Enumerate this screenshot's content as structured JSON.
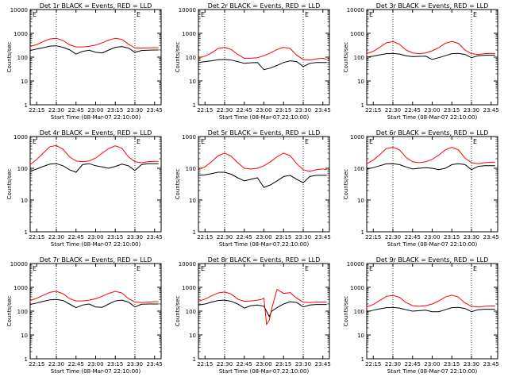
{
  "colors": {
    "events": "#000000",
    "lld": "#ff0000",
    "background": "#ffffff",
    "axes": "#000000"
  },
  "common": {
    "xlabel": "Start Time (08-Mar-07 22:10:00)",
    "ylabel": "Counts/sec",
    "x_tick_labels": [
      "22:15",
      "22:30",
      "22:45",
      "23:00",
      "23:15",
      "23:30",
      "23:45"
    ],
    "x_tick_minutes": [
      5,
      20,
      35,
      50,
      65,
      80,
      95
    ],
    "xlim_minutes": [
      0,
      100
    ],
    "marker_lines_minutes": [
      20,
      80
    ],
    "marker_label": "E",
    "marker_label_minute": 80
  },
  "chart_data": [
    {
      "type": "line",
      "title": "Det 1r BLACK = Events, RED = LLD",
      "ylim": [
        1,
        10000
      ],
      "yscale": "log",
      "y_tick_labels": [
        "1",
        "10",
        "100",
        "1000",
        "10000"
      ],
      "x_minutes": [
        0,
        5,
        10,
        15,
        20,
        25,
        30,
        35,
        40,
        45,
        50,
        55,
        60,
        65,
        70,
        75,
        80,
        85,
        90,
        95,
        98
      ],
      "series": [
        {
          "name": "Events",
          "values": [
            190,
            220,
            250,
            290,
            300,
            260,
            205,
            135,
            175,
            195,
            160,
            150,
            200,
            260,
            280,
            240,
            160,
            190,
            195,
            200,
            200
          ]
        },
        {
          "name": "LLD",
          "values": [
            280,
            340,
            450,
            580,
            620,
            500,
            330,
            270,
            270,
            285,
            320,
            400,
            520,
            620,
            560,
            350,
            245,
            240,
            245,
            250,
            250
          ]
        }
      ]
    },
    {
      "type": "line",
      "title": "Det 2r BLACK = Events, RED = LLD",
      "ylim": [
        1,
        10000
      ],
      "yscale": "log",
      "y_tick_labels": [
        "1",
        "10",
        "100",
        "1000",
        "10000"
      ],
      "x_minutes": [
        0,
        5,
        10,
        15,
        20,
        25,
        30,
        35,
        40,
        45,
        50,
        55,
        60,
        65,
        70,
        75,
        80,
        85,
        90,
        95,
        98
      ],
      "series": [
        {
          "name": "Events",
          "values": [
            60,
            65,
            70,
            78,
            80,
            75,
            65,
            55,
            58,
            60,
            30,
            35,
            45,
            60,
            70,
            65,
            40,
            55,
            60,
            60,
            60
          ]
        },
        {
          "name": "LLD",
          "values": [
            95,
            110,
            150,
            230,
            260,
            210,
            130,
            90,
            90,
            95,
            115,
            150,
            210,
            260,
            230,
            120,
            80,
            75,
            85,
            90,
            80
          ]
        }
      ]
    },
    {
      "type": "line",
      "title": "Det 3r BLACK = Events, RED = LLD",
      "ylim": [
        1,
        10000
      ],
      "yscale": "log",
      "y_tick_labels": [
        "1",
        "10",
        "100",
        "1000",
        "10000"
      ],
      "x_minutes": [
        0,
        5,
        10,
        15,
        20,
        25,
        30,
        35,
        40,
        45,
        50,
        55,
        60,
        65,
        70,
        75,
        80,
        85,
        90,
        95,
        98
      ],
      "series": [
        {
          "name": "Events",
          "values": [
            100,
            110,
            125,
            140,
            145,
            135,
            115,
            105,
            108,
            110,
            80,
            95,
            115,
            140,
            145,
            130,
            95,
            115,
            120,
            120,
            120
          ]
        },
        {
          "name": "LLD",
          "values": [
            140,
            175,
            260,
            400,
            450,
            350,
            200,
            150,
            140,
            150,
            185,
            250,
            380,
            460,
            380,
            200,
            140,
            130,
            140,
            145,
            140
          ]
        }
      ]
    },
    {
      "type": "line",
      "title": "Det 4r BLACK = Events, RED = LLD",
      "ylim": [
        1,
        1000
      ],
      "yscale": "log",
      "y_tick_labels": [
        "1",
        "10",
        "100",
        "1000"
      ],
      "x_minutes": [
        0,
        5,
        10,
        15,
        20,
        25,
        30,
        35,
        40,
        45,
        50,
        55,
        60,
        65,
        70,
        75,
        80,
        85,
        90,
        95,
        98
      ],
      "series": [
        {
          "name": "Events",
          "values": [
            80,
            95,
            115,
            135,
            140,
            120,
            90,
            75,
            130,
            140,
            120,
            110,
            100,
            115,
            135,
            120,
            85,
            130,
            140,
            140,
            140
          ]
        },
        {
          "name": "LLD",
          "values": [
            130,
            190,
            300,
            480,
            520,
            400,
            230,
            170,
            160,
            170,
            210,
            300,
            420,
            510,
            430,
            230,
            160,
            150,
            160,
            165,
            165
          ]
        }
      ]
    },
    {
      "type": "line",
      "title": "Det 5r BLACK = Events, RED = LLD",
      "ylim": [
        1,
        1000
      ],
      "yscale": "log",
      "y_tick_labels": [
        "1",
        "10",
        "100",
        "1000"
      ],
      "x_minutes": [
        0,
        5,
        10,
        15,
        20,
        25,
        30,
        35,
        40,
        45,
        50,
        55,
        60,
        65,
        70,
        75,
        80,
        85,
        90,
        95,
        98
      ],
      "series": [
        {
          "name": "Events",
          "values": [
            60,
            62,
            68,
            75,
            75,
            65,
            50,
            40,
            45,
            50,
            25,
            30,
            40,
            55,
            60,
            45,
            35,
            55,
            60,
            60,
            60
          ]
        },
        {
          "name": "LLD",
          "values": [
            95,
            110,
            160,
            250,
            300,
            240,
            150,
            100,
            95,
            100,
            120,
            160,
            230,
            300,
            250,
            140,
            90,
            80,
            90,
            95,
            90
          ]
        }
      ]
    },
    {
      "type": "line",
      "title": "Det 6r BLACK = Events, RED = LLD",
      "ylim": [
        1,
        1000
      ],
      "yscale": "log",
      "y_tick_labels": [
        "1",
        "10",
        "100",
        "1000"
      ],
      "x_minutes": [
        0,
        5,
        10,
        15,
        20,
        25,
        30,
        35,
        40,
        45,
        50,
        55,
        60,
        65,
        70,
        75,
        80,
        85,
        90,
        95,
        98
      ],
      "series": [
        {
          "name": "Events",
          "values": [
            95,
            105,
            120,
            138,
            140,
            130,
            110,
            95,
            100,
            105,
            100,
            90,
            100,
            130,
            140,
            130,
            90,
            115,
            120,
            120,
            120
          ]
        },
        {
          "name": "LLD",
          "values": [
            140,
            180,
            270,
            420,
            460,
            380,
            220,
            160,
            150,
            160,
            190,
            260,
            380,
            460,
            380,
            210,
            150,
            140,
            150,
            155,
            155
          ]
        }
      ]
    },
    {
      "type": "line",
      "title": "Det 7r BLACK = Events, RED = LLD",
      "ylim": [
        1,
        10000
      ],
      "yscale": "log",
      "y_tick_labels": [
        "1",
        "10",
        "100",
        "1000",
        "10000"
      ],
      "x_minutes": [
        0,
        5,
        10,
        15,
        20,
        25,
        30,
        35,
        40,
        45,
        50,
        55,
        60,
        65,
        70,
        75,
        80,
        85,
        90,
        95,
        98
      ],
      "series": [
        {
          "name": "Events",
          "values": [
            190,
            220,
            260,
            300,
            310,
            280,
            200,
            140,
            180,
            200,
            150,
            145,
            200,
            270,
            290,
            240,
            150,
            195,
            200,
            200,
            200
          ]
        },
        {
          "name": "LLD",
          "values": [
            280,
            350,
            460,
            620,
            680,
            540,
            340,
            270,
            270,
            290,
            330,
            420,
            560,
            680,
            580,
            340,
            240,
            230,
            240,
            250,
            250
          ]
        }
      ]
    },
    {
      "type": "line",
      "title": "Det 8r BLACK = Events, RED = LLD",
      "ylim": [
        1,
        10000
      ],
      "yscale": "log",
      "y_tick_labels": [
        "1",
        "10",
        "100",
        "1000",
        "10000"
      ],
      "x_minutes": [
        0,
        5,
        10,
        15,
        20,
        25,
        30,
        35,
        40,
        45,
        48,
        50,
        52,
        54,
        56,
        60,
        65,
        70,
        75,
        80,
        85,
        90,
        95,
        98
      ],
      "series": [
        {
          "name": "Events",
          "values": [
            180,
            200,
            240,
            280,
            290,
            260,
            200,
            135,
            170,
            180,
            170,
            160,
            100,
            60,
            100,
            140,
            200,
            250,
            230,
            150,
            180,
            190,
            190,
            190
          ]
        },
        {
          "name": "LLD",
          "values": [
            260,
            320,
            440,
            580,
            640,
            520,
            320,
            260,
            270,
            290,
            310,
            350,
            28,
            40,
            130,
            820,
            560,
            600,
            350,
            240,
            230,
            240,
            240,
            240
          ]
        }
      ]
    },
    {
      "type": "line",
      "title": "Det 9r BLACK = Events, RED = LLD",
      "ylim": [
        1,
        10000
      ],
      "yscale": "log",
      "y_tick_labels": [
        "1",
        "10",
        "100",
        "1000",
        "10000"
      ],
      "x_minutes": [
        0,
        5,
        10,
        15,
        20,
        25,
        30,
        35,
        40,
        45,
        50,
        55,
        60,
        65,
        70,
        75,
        80,
        85,
        90,
        95,
        98
      ],
      "series": [
        {
          "name": "Events",
          "values": [
            95,
            110,
            125,
            140,
            145,
            135,
            115,
            100,
            105,
            110,
            95,
            95,
            115,
            140,
            145,
            130,
            95,
            115,
            120,
            120,
            120
          ]
        },
        {
          "name": "LLD",
          "values": [
            150,
            190,
            280,
            420,
            460,
            380,
            230,
            170,
            160,
            170,
            200,
            270,
            390,
            470,
            390,
            220,
            160,
            150,
            160,
            165,
            165
          ]
        }
      ]
    }
  ]
}
